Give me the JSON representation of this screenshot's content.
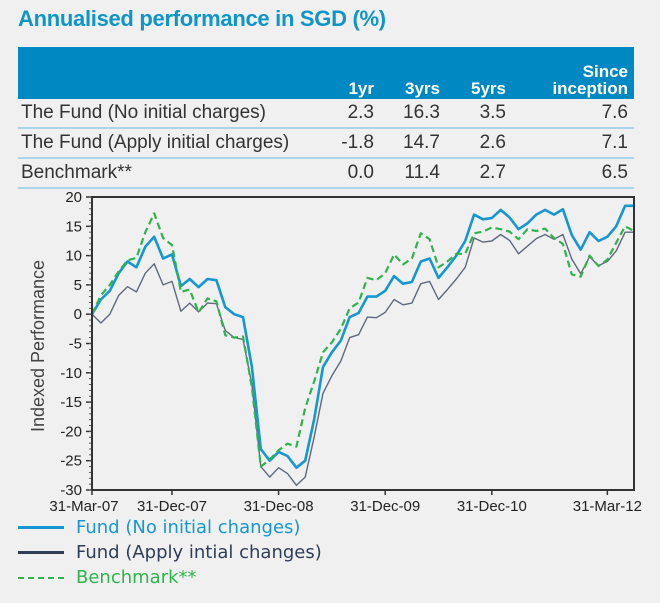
{
  "title": "Annualised performance in SGD (%)",
  "table": {
    "headers": [
      "",
      "1yr",
      "3yrs",
      "5yrs",
      "Since inception"
    ],
    "header_since_line1": "Since",
    "header_since_line2": "inception",
    "rows": [
      {
        "label": "The Fund (No initial charges)",
        "values": [
          "2.3",
          "16.3",
          "3.5",
          "7.6"
        ]
      },
      {
        "label": "The Fund (Apply initial charges)",
        "values": [
          "-1.8",
          "14.7",
          "2.6",
          "7.1"
        ]
      },
      {
        "label": "Benchmark**",
        "values": [
          "0.0",
          "11.4",
          "2.7",
          "6.5"
        ]
      }
    ]
  },
  "colors": {
    "accent": "#0088c2",
    "fund_no_charges": "#1597d1",
    "fund_apply_charges": "#2e3e56",
    "benchmark": "#2fb34c"
  },
  "chart_data": {
    "type": "line",
    "title": "",
    "xlabel": "",
    "ylabel": "Indexed Performance",
    "ylim": [
      -30,
      20
    ],
    "yticks": [
      20,
      15,
      10,
      5,
      0,
      -5,
      -10,
      -15,
      -20,
      -25,
      -30
    ],
    "x_points": 62,
    "xticks": [
      {
        "index": 0,
        "label": "31-Mar-07"
      },
      {
        "index": 9,
        "label": "31-Dec-07"
      },
      {
        "index": 21,
        "label": "31-Dec-08"
      },
      {
        "index": 33,
        "label": "31-Dec-09"
      },
      {
        "index": 45,
        "label": "31-Dec-10"
      },
      {
        "index": 58,
        "label": "31-Mar-12"
      }
    ],
    "grid": false,
    "legend_position": "bottom-left",
    "series": [
      {
        "name": "Fund (No initial changes)",
        "style": "solid",
        "values": [
          0,
          2.5,
          4,
          7,
          9,
          8,
          11.5,
          13.2,
          9.5,
          10.2,
          4.8,
          6,
          4.6,
          6,
          5.8,
          1.2,
          0,
          -0.5,
          -9,
          -23,
          -25,
          -23.5,
          -24.2,
          -26.2,
          -25,
          -18,
          -9,
          -6.5,
          -4.5,
          -0.5,
          0.2,
          3,
          3,
          4,
          6.5,
          5.2,
          5.5,
          9,
          9.5,
          6.2,
          8,
          10,
          12.5,
          17,
          16.2,
          16.4,
          17.8,
          16.5,
          14.5,
          15.5,
          17,
          17.8,
          17,
          17.9,
          13.5,
          11,
          14,
          12.5,
          13.2,
          15,
          18.5,
          18.5
        ]
      },
      {
        "name": "Fund (Apply intial changes)",
        "style": "solid",
        "values": [
          0,
          -1.5,
          0,
          3.2,
          4.7,
          3.8,
          7,
          8.6,
          5,
          5.6,
          0.5,
          1.9,
          0.4,
          1.9,
          1.8,
          -2.8,
          -4,
          -4.3,
          -12,
          -26,
          -27.8,
          -26.2,
          -27.2,
          -29.2,
          -27.8,
          -21,
          -13.5,
          -10.5,
          -8,
          -4,
          -3.5,
          -0.5,
          -0.6,
          0.3,
          2.5,
          1.6,
          1.9,
          5.2,
          5.6,
          2.5,
          4.2,
          6,
          8,
          13,
          12.3,
          12.5,
          13.6,
          12.6,
          10.3,
          11.6,
          12.9,
          13.6,
          12.8,
          13.6,
          9.4,
          6.9,
          9.8,
          8.3,
          9,
          10.8,
          14,
          14
        ]
      },
      {
        "name": "Benchmark**",
        "style": "dashed",
        "values": [
          0,
          3.2,
          5,
          7.3,
          9.2,
          9.6,
          14,
          17.2,
          13,
          11.8,
          3.8,
          4.2,
          0.3,
          2.7,
          2.2,
          -3.6,
          -4,
          -3.8,
          -12.5,
          -26,
          -24.8,
          -23.2,
          -22.1,
          -22.6,
          -16,
          -11.5,
          -6.5,
          -4.8,
          -2.5,
          1,
          2,
          6.2,
          5.8,
          7,
          10.2,
          8.5,
          9.5,
          13.8,
          12.8,
          8,
          9,
          10.3,
          10.3,
          13.8,
          14.1,
          14.8,
          14.5,
          14.1,
          12.8,
          14.5,
          14.2,
          14.6,
          13,
          12,
          6.8,
          6.4,
          10,
          8.2,
          9.3,
          12.2,
          15,
          14.2
        ]
      }
    ]
  },
  "legend": [
    {
      "label": "Fund (No initial changes)",
      "icon": "solid-line-icon"
    },
    {
      "label": "Fund (Apply intial changes)",
      "icon": "solid-line-icon"
    },
    {
      "label": "Benchmark**",
      "icon": "dashed-line-icon"
    }
  ]
}
